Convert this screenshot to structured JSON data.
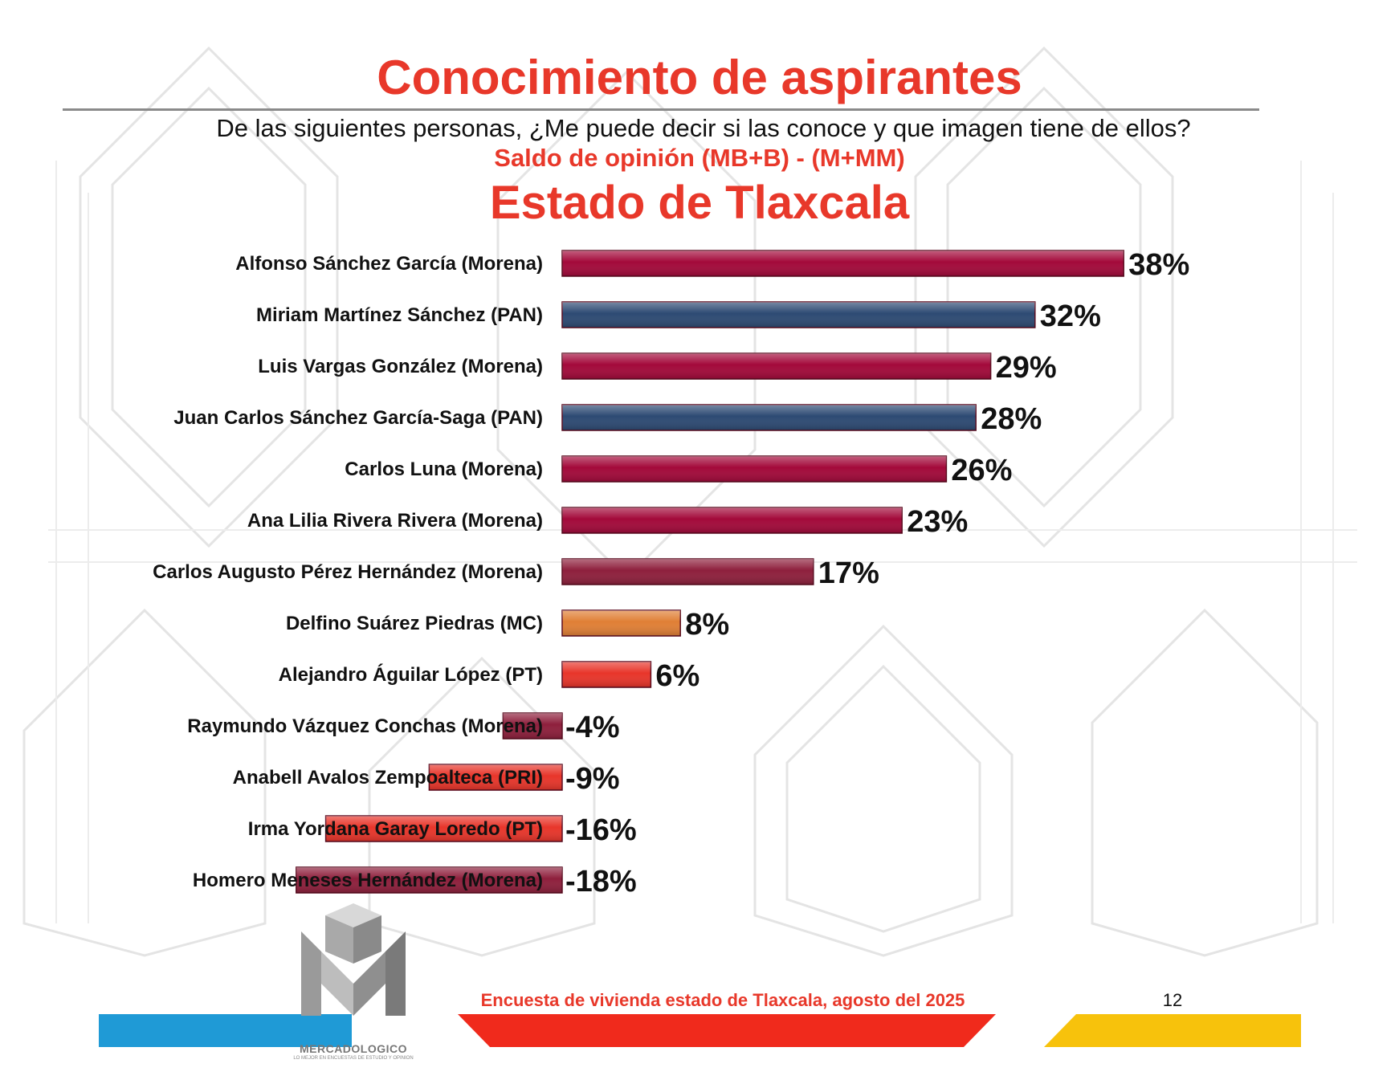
{
  "header": {
    "title": "Conocimiento de aspirantes",
    "question": "De las siguientes personas, ¿Me puede decir si las conoce y que imagen tiene de ellos?",
    "subtitle": "Saldo de opinión (MB+B) - (M+MM)",
    "region": "Estado de  Tlaxcala"
  },
  "chart_data": {
    "type": "bar",
    "orientation": "horizontal",
    "title": "Saldo de opinión (MB+B) - (M+MM)",
    "xlabel": "",
    "ylabel": "",
    "xlim": [
      -18,
      38
    ],
    "value_suffix": "%",
    "categories": [
      "Alfonso Sánchez García (Morena)",
      "Miriam Martínez Sánchez (PAN)",
      "Luis Vargas González (Morena)",
      "Juan Carlos Sánchez García-Saga (PAN)",
      "Carlos Luna (Morena)",
      "Ana Lilia Rivera Rivera (Morena)",
      "Carlos Augusto Pérez Hernández (Morena)",
      "Delfino Suárez Piedras (MC)",
      "Alejandro Águilar López (PT)",
      "Raymundo Vázquez Conchas (Morena)",
      "Anabell Avalos Zempoalteca (PRI)",
      "Irma Yordana Garay Loredo (PT)",
      "Homero Meneses Hernández (Morena)"
    ],
    "values": [
      38,
      32,
      29,
      28,
      26,
      23,
      17,
      8,
      6,
      -4,
      -9,
      -16,
      -18
    ],
    "labels": [
      "38%",
      "32%",
      "29%",
      "28%",
      "26%",
      "23%",
      "17%",
      "8%",
      "6%",
      "-4%",
      "-9%",
      "-16%",
      "-18%"
    ],
    "colors": [
      "#a3093a",
      "#2d4a73",
      "#a3093a",
      "#2d4a73",
      "#a3093a",
      "#a3093a",
      "#8e1f3c",
      "#e07f35",
      "#e8352a",
      "#8e1f3c",
      "#e8352a",
      "#e8352a",
      "#8e1f3c"
    ]
  },
  "footer": {
    "survey": "Encuesta de vivienda estado de Tlaxcala, agosto del 2025",
    "page": "12",
    "bar_colors": [
      "#1f9ad6",
      "#f02a1c",
      "#f7c20c"
    ]
  },
  "logo": {
    "name": "MERCADOLOGICO",
    "tagline": "LO MEJOR EN ENCUESTAS DE ESTUDIO Y OPINION"
  }
}
